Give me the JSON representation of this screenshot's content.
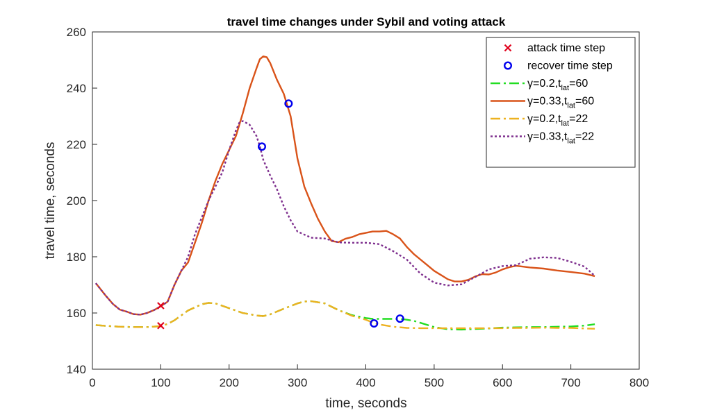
{
  "chart_data": {
    "type": "line",
    "title": "travel time changes under Sybil and voting attack",
    "xlabel": "time, seconds",
    "ylabel": "travel time, seconds",
    "xlim": [
      0,
      800
    ],
    "ylim": [
      140,
      260
    ],
    "xticks": [
      "0",
      "100",
      "200",
      "300",
      "400",
      "500",
      "600",
      "700",
      "800"
    ],
    "yticks": [
      "140",
      "160",
      "180",
      "200",
      "220",
      "240",
      "260"
    ],
    "grid": false,
    "legend_placement": "top-right",
    "series": [
      {
        "key": "g02_t60",
        "legend": {
          "prefix": "γ=0.2,t",
          "sub": "lat",
          "suffix": "=60"
        },
        "color": "#22dd22",
        "style": "dashdot",
        "width": 2.4,
        "x": [
          5,
          20,
          40,
          60,
          80,
          100,
          110,
          120,
          140,
          160,
          170,
          180,
          200,
          220,
          240,
          250,
          260,
          280,
          300,
          310,
          320,
          340,
          360,
          380,
          400,
          410,
          420,
          440,
          450,
          460,
          470,
          480,
          500,
          520,
          540,
          560,
          580,
          600,
          620,
          640,
          660,
          680,
          700,
          720,
          735
        ],
        "y": [
          155.7,
          155.4,
          155.1,
          155.0,
          155.0,
          155.3,
          156.1,
          157.4,
          160.9,
          163.1,
          163.6,
          163.4,
          161.7,
          160.0,
          159.1,
          158.9,
          159.5,
          161.5,
          163.4,
          164.1,
          164.2,
          163.4,
          161.0,
          159.2,
          158.2,
          157.9,
          157.9,
          157.9,
          157.9,
          157.6,
          157.2,
          156.5,
          155.0,
          154.2,
          154.1,
          154.3,
          154.5,
          154.8,
          154.9,
          155.0,
          155.0,
          155.1,
          155.2,
          155.5,
          156.0
        ]
      },
      {
        "key": "g033_t60",
        "legend": {
          "prefix": "γ=0.33,t",
          "sub": "lat",
          "suffix": "=60"
        },
        "color": "#d95319",
        "style": "solid",
        "width": 2.4,
        "x": [
          5,
          20,
          30,
          40,
          50,
          60,
          70,
          80,
          90,
          100,
          110,
          120,
          130,
          140,
          150,
          160,
          170,
          180,
          190,
          200,
          210,
          220,
          230,
          240,
          245,
          250,
          255,
          260,
          270,
          280,
          290,
          300,
          310,
          320,
          330,
          340,
          350,
          360,
          370,
          380,
          390,
          400,
          410,
          420,
          430,
          440,
          450,
          460,
          470,
          480,
          490,
          500,
          510,
          520,
          530,
          540,
          550,
          560,
          570,
          580,
          590,
          600,
          610,
          620,
          630,
          640,
          660,
          680,
          700,
          720,
          735
        ],
        "y": [
          170.6,
          166.0,
          163.2,
          161.2,
          160.5,
          159.6,
          159.4,
          160.0,
          161.0,
          162.4,
          164.0,
          170.0,
          175.0,
          178.0,
          185.0,
          192.0,
          200.0,
          207.0,
          213.0,
          218.0,
          223.0,
          231.0,
          240.0,
          247.0,
          250.3,
          251.3,
          251.0,
          249.0,
          243.0,
          238.0,
          230.0,
          215.0,
          205.0,
          199.0,
          193.5,
          189.0,
          185.6,
          185.2,
          186.4,
          187.0,
          188.0,
          188.5,
          189.0,
          189.0,
          189.2,
          188.0,
          186.5,
          183.5,
          181.0,
          179.0,
          177.0,
          175.0,
          173.5,
          172.0,
          171.2,
          171.2,
          171.8,
          173.0,
          173.8,
          173.7,
          174.4,
          175.5,
          176.3,
          176.8,
          176.5,
          176.2,
          175.8,
          175.1,
          174.6,
          174.0,
          173.1
        ]
      },
      {
        "key": "g02_t22",
        "legend": {
          "prefix": "γ=0.2,t",
          "sub": "lat",
          "suffix": "=22"
        },
        "color": "#edb120",
        "style": "dashdot",
        "width": 2.4,
        "x": [
          5,
          20,
          40,
          60,
          80,
          100,
          110,
          120,
          140,
          160,
          170,
          180,
          200,
          220,
          240,
          250,
          260,
          280,
          300,
          310,
          320,
          340,
          360,
          380,
          400,
          410,
          420,
          440,
          460,
          480,
          500,
          520,
          540,
          560,
          580,
          600,
          620,
          640,
          660,
          680,
          700,
          720,
          735
        ],
        "y": [
          155.7,
          155.4,
          155.1,
          155.0,
          155.0,
          155.3,
          156.1,
          157.4,
          160.9,
          163.1,
          163.6,
          163.4,
          161.7,
          160.0,
          159.1,
          158.9,
          159.5,
          161.5,
          163.4,
          164.1,
          164.2,
          163.4,
          161.0,
          159.0,
          157.6,
          156.6,
          155.9,
          155.1,
          154.7,
          154.6,
          154.6,
          154.6,
          154.6,
          154.6,
          154.6,
          154.6,
          154.7,
          154.7,
          154.8,
          154.7,
          154.7,
          154.5,
          154.4
        ]
      },
      {
        "key": "g033_t22",
        "legend": {
          "prefix": "γ=0.33,t",
          "sub": "lat",
          "suffix": "=22"
        },
        "color": "#7e2f8e",
        "style": "dotted",
        "width": 2.4,
        "x": [
          5,
          20,
          30,
          40,
          50,
          60,
          70,
          80,
          90,
          100,
          110,
          120,
          130,
          140,
          150,
          160,
          170,
          180,
          190,
          200,
          210,
          215,
          220,
          230,
          240,
          245,
          250,
          260,
          270,
          280,
          290,
          300,
          320,
          340,
          360,
          380,
          400,
          420,
          440,
          460,
          480,
          500,
          520,
          540,
          560,
          580,
          600,
          620,
          640,
          660,
          680,
          700,
          720,
          735
        ],
        "y": [
          170.6,
          166.0,
          163.2,
          161.2,
          160.5,
          159.6,
          159.4,
          160.0,
          161.0,
          162.4,
          164.0,
          170.0,
          175.0,
          180.0,
          188.0,
          194.0,
          200.0,
          205.0,
          210.0,
          218.0,
          225.0,
          227.7,
          228.3,
          227.0,
          223.0,
          219.3,
          214.5,
          209.0,
          204.0,
          198.0,
          193.0,
          189.0,
          186.8,
          186.5,
          185.1,
          185.0,
          185.0,
          184.5,
          182.0,
          179.0,
          174.0,
          170.8,
          169.8,
          170.2,
          172.8,
          175.5,
          176.7,
          177.0,
          179.3,
          179.8,
          179.6,
          178.2,
          176.5,
          173.2
        ]
      }
    ],
    "markers": {
      "attack": {
        "label": "attack time step",
        "color": "#e0001b",
        "symbol": "x",
        "points": [
          {
            "x": 100,
            "y": 162.6
          },
          {
            "x": 100,
            "y": 155.5
          }
        ]
      },
      "recover": {
        "label": "recover time step",
        "color": "#0000ee",
        "symbol": "o",
        "points": [
          {
            "x": 287,
            "y": 234.5
          },
          {
            "x": 248,
            "y": 219.2
          },
          {
            "x": 412,
            "y": 156.3
          },
          {
            "x": 450,
            "y": 158.0
          }
        ]
      }
    }
  }
}
